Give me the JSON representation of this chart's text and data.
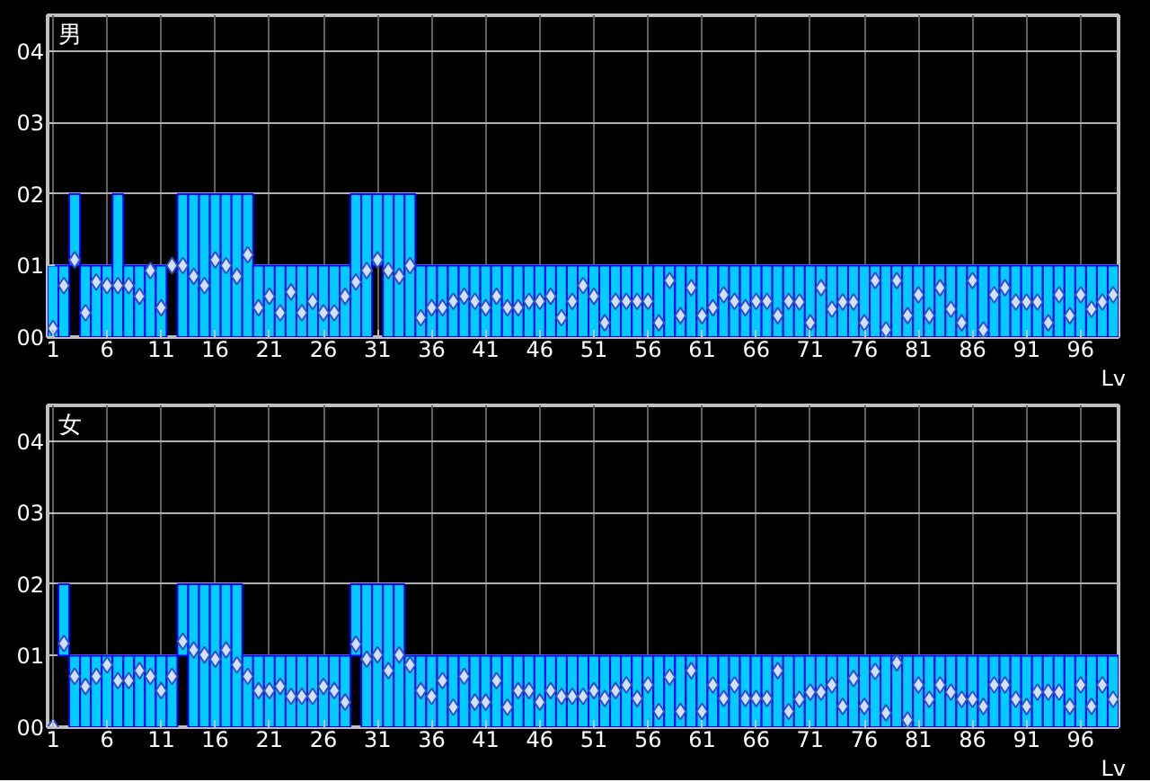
{
  "chart_data": [
    {
      "type": "bar",
      "title": "男",
      "xlabel": "Lv",
      "grid": true,
      "marker": "diamond",
      "x": [
        1,
        2,
        3,
        4,
        5,
        6,
        7,
        8,
        9,
        10,
        11,
        12,
        13,
        14,
        15,
        16,
        17,
        18,
        19,
        20,
        21,
        22,
        23,
        24,
        25,
        26,
        27,
        28,
        29,
        30,
        31,
        32,
        33,
        34,
        35,
        36,
        37,
        38,
        39,
        40,
        41,
        42,
        43,
        44,
        45,
        46,
        47,
        48,
        49,
        50,
        51,
        52,
        53,
        54,
        55,
        56,
        57,
        58,
        59,
        60,
        61,
        62,
        63,
        64,
        65,
        66,
        67,
        68,
        69,
        70,
        71,
        72,
        73,
        74,
        75,
        76,
        77,
        78,
        79,
        80,
        81,
        82,
        83,
        84,
        85,
        86,
        87,
        88,
        89,
        90,
        91,
        92,
        93,
        94,
        95,
        96,
        97,
        98,
        99
      ],
      "xlim": [
        0.5,
        99.5
      ],
      "xticks": [
        1,
        6,
        11,
        16,
        21,
        26,
        31,
        36,
        41,
        46,
        51,
        56,
        61,
        66,
        71,
        76,
        81,
        86,
        91,
        96
      ],
      "ylim": [
        0,
        4.5
      ],
      "yticks": [
        {
          "value": 0,
          "label": "00"
        },
        {
          "value": 1,
          "label": "01"
        },
        {
          "value": 2,
          "label": "02"
        },
        {
          "value": 3,
          "label": "03"
        },
        {
          "value": 4,
          "label": "04"
        }
      ],
      "series": [
        {
          "color": "#00ccff",
          "values": [
            1,
            1,
            1,
            1,
            1,
            1,
            2,
            1,
            1,
            1,
            1,
            null,
            2,
            2,
            2,
            2,
            2,
            2,
            2,
            1,
            1,
            1,
            1,
            1,
            1,
            1,
            1,
            1,
            2,
            2,
            1,
            2,
            2,
            2,
            1,
            1,
            1,
            1,
            1,
            1,
            1,
            1,
            1,
            1,
            1,
            1,
            1,
            1,
            1,
            1,
            1,
            1,
            1,
            1,
            1,
            1,
            1,
            1,
            1,
            1,
            1,
            1,
            1,
            1,
            1,
            1,
            1,
            1,
            1,
            1,
            1,
            1,
            1,
            1,
            1,
            1,
            1,
            1,
            1,
            1,
            1,
            1,
            1,
            1,
            1,
            1,
            1,
            1,
            1,
            1,
            1,
            1,
            1,
            1,
            1,
            1,
            1,
            1,
            1
          ],
          "base": [
            0,
            0,
            1,
            0,
            0,
            0,
            0,
            0,
            0,
            0,
            0,
            null,
            0,
            0,
            0,
            0,
            0,
            0,
            0,
            0,
            0,
            0,
            0,
            0,
            0,
            0,
            0,
            0,
            0,
            0,
            1,
            0,
            0,
            0,
            0,
            0,
            0,
            0,
            0,
            0,
            0,
            0,
            0,
            0,
            0,
            0,
            0,
            0,
            0,
            0,
            0,
            0,
            0,
            0,
            0,
            0,
            0,
            0,
            0,
            0,
            0,
            0,
            0,
            0,
            0,
            0,
            0,
            0,
            0,
            0,
            0,
            0,
            0,
            0,
            0,
            0,
            0,
            0,
            0,
            0,
            0,
            0,
            0,
            0,
            0,
            0,
            0,
            0,
            0,
            0,
            0,
            0,
            0,
            0,
            0,
            0,
            0,
            0,
            0
          ]
        },
        {
          "type": "scatter",
          "color": "#d0e0ff",
          "values": [
            0.12,
            0.72,
            1.08,
            0.34,
            0.77,
            0.72,
            0.72,
            0.72,
            0.57,
            0.93,
            0.41,
            1.0,
            1.0,
            0.85,
            0.72,
            1.08,
            1.0,
            0.85,
            1.15,
            0.41,
            0.57,
            0.34,
            0.63,
            0.34,
            0.5,
            0.34,
            0.34,
            0.57,
            0.77,
            0.93,
            1.08,
            0.93,
            0.85,
            1.0,
            0.27,
            0.41,
            0.41,
            0.5,
            0.57,
            0.5,
            0.41,
            0.57,
            0.41,
            0.41,
            0.5,
            0.5,
            0.57,
            0.27,
            0.5,
            0.72,
            0.57,
            0.2,
            0.5,
            0.5,
            0.5,
            0.5,
            0.2,
            0.79,
            0.3,
            0.69,
            0.3,
            0.41,
            0.59,
            0.5,
            0.41,
            0.5,
            0.5,
            0.3,
            0.5,
            0.49,
            0.2,
            0.69,
            0.39,
            0.49,
            0.49,
            0.2,
            0.79,
            0.1,
            0.79,
            0.3,
            0.59,
            0.3,
            0.69,
            0.39,
            0.2,
            0.79,
            0.1,
            0.59,
            0.69,
            0.49,
            0.49,
            0.49,
            0.2,
            0.59,
            0.3,
            0.59,
            0.39,
            0.49,
            0.59
          ]
        }
      ]
    },
    {
      "type": "bar",
      "title": "女",
      "xlabel": "Lv",
      "grid": true,
      "marker": "diamond",
      "x": [
        1,
        2,
        3,
        4,
        5,
        6,
        7,
        8,
        9,
        10,
        11,
        12,
        13,
        14,
        15,
        16,
        17,
        18,
        19,
        20,
        21,
        22,
        23,
        24,
        25,
        26,
        27,
        28,
        29,
        30,
        31,
        32,
        33,
        34,
        35,
        36,
        37,
        38,
        39,
        40,
        41,
        42,
        43,
        44,
        45,
        46,
        47,
        48,
        49,
        50,
        51,
        52,
        53,
        54,
        55,
        56,
        57,
        58,
        59,
        60,
        61,
        62,
        63,
        64,
        65,
        66,
        67,
        68,
        69,
        70,
        71,
        72,
        73,
        74,
        75,
        76,
        77,
        78,
        79,
        80,
        81,
        82,
        83,
        84,
        85,
        86,
        87,
        88,
        89,
        90,
        91,
        92,
        93,
        94,
        95,
        96,
        97,
        98,
        99
      ],
      "xlim": [
        0.5,
        99.5
      ],
      "xticks": [
        1,
        6,
        11,
        16,
        21,
        26,
        31,
        36,
        41,
        46,
        51,
        56,
        61,
        66,
        71,
        76,
        81,
        86,
        91,
        96
      ],
      "ylim": [
        0,
        4.5
      ],
      "yticks": [
        {
          "value": 0,
          "label": "00"
        },
        {
          "value": 1,
          "label": "01"
        },
        {
          "value": 2,
          "label": "02"
        },
        {
          "value": 3,
          "label": "03"
        },
        {
          "value": 4,
          "label": "04"
        }
      ],
      "series": [
        {
          "color": "#00ccff",
          "values": [
            null,
            1,
            1,
            1,
            1,
            1,
            1,
            1,
            1,
            1,
            1,
            1,
            1,
            2,
            2,
            2,
            2,
            2,
            1,
            1,
            1,
            1,
            1,
            1,
            1,
            1,
            1,
            1,
            1,
            2,
            2,
            2,
            2,
            1,
            1,
            1,
            1,
            1,
            1,
            1,
            1,
            1,
            1,
            1,
            1,
            1,
            1,
            1,
            1,
            1,
            1,
            1,
            1,
            1,
            1,
            1,
            1,
            1,
            1,
            1,
            1,
            1,
            1,
            1,
            1,
            1,
            1,
            1,
            1,
            1,
            1,
            1,
            1,
            1,
            1,
            1,
            1,
            1,
            1,
            1,
            1,
            1,
            1,
            1,
            1,
            1,
            1,
            1,
            1,
            1,
            1,
            1,
            1,
            1,
            1,
            1,
            1,
            1,
            1
          ],
          "base": [
            null,
            1,
            0,
            0,
            0,
            0,
            0,
            0,
            0,
            0,
            0,
            0,
            1,
            0,
            0,
            0,
            0,
            0,
            0,
            0,
            0,
            0,
            0,
            0,
            0,
            0,
            0,
            0,
            1,
            0,
            0,
            0,
            0,
            0,
            0,
            0,
            0,
            0,
            0,
            0,
            0,
            0,
            0,
            0,
            0,
            0,
            0,
            0,
            0,
            0,
            0,
            0,
            0,
            0,
            0,
            0,
            0,
            0,
            0,
            0,
            0,
            0,
            0,
            0,
            0,
            0,
            0,
            0,
            0,
            0,
            0,
            0,
            0,
            0,
            0,
            0,
            0,
            0,
            0,
            0,
            0,
            0,
            0,
            0,
            0,
            0,
            0,
            0,
            0,
            0,
            0,
            0,
            0,
            0,
            0,
            0,
            0,
            0,
            0
          ]
        },
        {
          "type": "scatter",
          "color": "#d0e0ff",
          "values": [
            0,
            1.17,
            0.71,
            0.57,
            0.71,
            0.87,
            0.65,
            0.65,
            0.79,
            0.71,
            0.51,
            0.71,
            1.2,
            1.08,
            1.01,
            0.95,
            1.08,
            0.87,
            0.71,
            0.51,
            0.51,
            0.57,
            0.43,
            0.43,
            0.43,
            0.57,
            0.51,
            0.35,
            1.16,
            0.95,
            1.01,
            0.79,
            1.01,
            0.87,
            0.51,
            0.43,
            0.65,
            0.28,
            0.71,
            0.35,
            0.35,
            0.65,
            0.28,
            0.51,
            0.51,
            0.35,
            0.51,
            0.43,
            0.43,
            0.43,
            0.51,
            0.4,
            0.51,
            0.59,
            0.4,
            0.59,
            0.22,
            0.7,
            0.22,
            0.79,
            0.22,
            0.59,
            0.4,
            0.59,
            0.4,
            0.4,
            0.4,
            0.79,
            0.22,
            0.39,
            0.49,
            0.49,
            0.59,
            0.29,
            0.68,
            0.29,
            0.78,
            0.2,
            0.9,
            0.1,
            0.59,
            0.39,
            0.59,
            0.49,
            0.39,
            0.39,
            0.29,
            0.59,
            0.59,
            0.39,
            0.29,
            0.49,
            0.49,
            0.49,
            0.29,
            0.59,
            0.29,
            0.59,
            0.39
          ]
        }
      ]
    }
  ]
}
